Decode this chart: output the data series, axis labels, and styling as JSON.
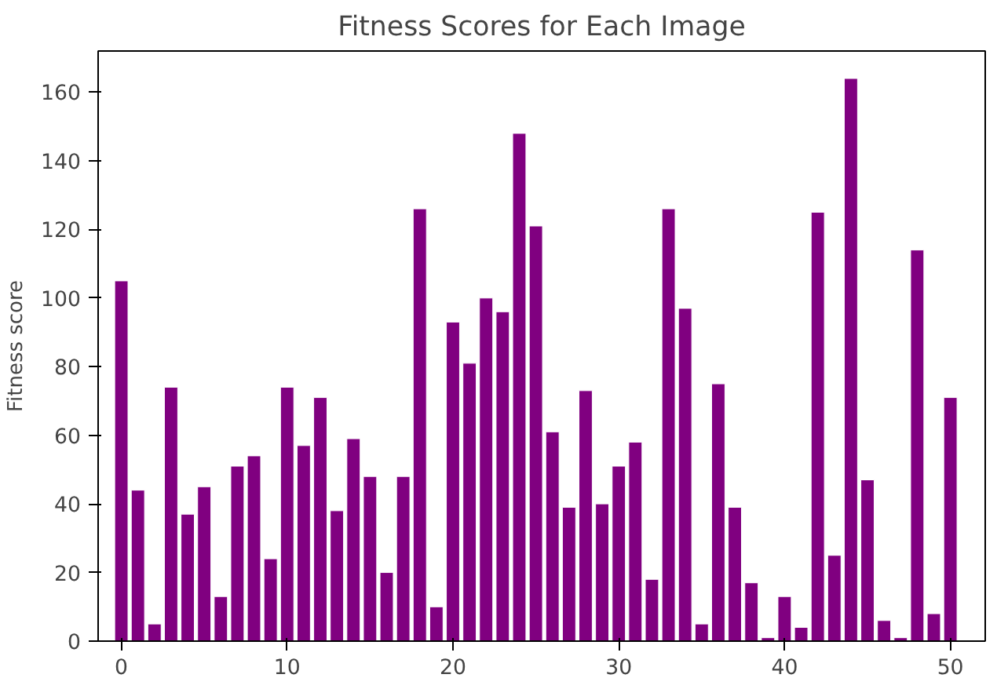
{
  "chart_data": {
    "type": "bar",
    "title": "Fitness Scores for Each Image",
    "ylabel": "Fitness score",
    "x": [
      0,
      1,
      2,
      3,
      4,
      5,
      6,
      7,
      8,
      9,
      10,
      11,
      12,
      13,
      14,
      15,
      16,
      17,
      18,
      19,
      20,
      21,
      22,
      23,
      24,
      25,
      26,
      27,
      28,
      29,
      30,
      31,
      32,
      33,
      34,
      35,
      36,
      37,
      38,
      39,
      40,
      41,
      42,
      43,
      44,
      45,
      46,
      47,
      48,
      49,
      50
    ],
    "values": [
      105,
      44,
      5,
      74,
      37,
      45,
      13,
      51,
      54,
      24,
      74,
      57,
      71,
      38,
      59,
      48,
      20,
      48,
      126,
      10,
      93,
      81,
      100,
      96,
      148,
      121,
      61,
      39,
      73,
      40,
      51,
      58,
      18,
      126,
      97,
      5,
      75,
      39,
      17,
      1,
      13,
      4,
      125,
      25,
      164,
      47,
      6,
      1,
      114,
      8,
      71
    ],
    "color": "#800080",
    "xlim": [
      -1.4,
      52.1
    ],
    "ylim": [
      0,
      172
    ],
    "xticks": [
      0,
      10,
      20,
      30,
      40,
      50
    ],
    "yticks": [
      0,
      20,
      40,
      60,
      80,
      100,
      120,
      140,
      160
    ],
    "grid": false
  }
}
